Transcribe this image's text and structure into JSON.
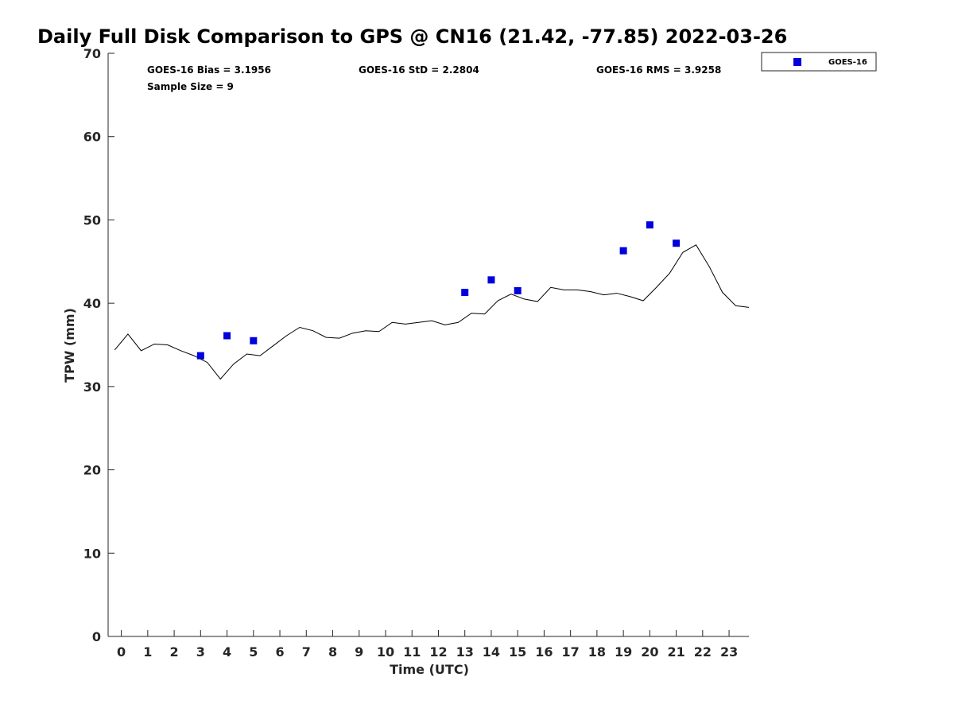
{
  "chart_data": {
    "type": "scatter",
    "title": "Daily Full Disk Comparison to GPS @ CN16 (21.42, -77.85) 2022-03-26",
    "xlabel": "Time (UTC)",
    "ylabel": "TPW (mm)",
    "xlim": [
      -0.5,
      23.75
    ],
    "ylim": [
      0,
      70
    ],
    "x_ticks": [
      0,
      1,
      2,
      3,
      4,
      5,
      6,
      7,
      8,
      9,
      10,
      11,
      12,
      13,
      14,
      15,
      16,
      17,
      18,
      19,
      20,
      21,
      22,
      23
    ],
    "y_ticks": [
      0,
      10,
      20,
      30,
      40,
      50,
      60,
      70
    ],
    "grid": false,
    "legend_position": "outside top-right",
    "stats": {
      "bias": "GOES-16 Bias = 3.1956",
      "std": "GOES-16 StD = 2.2804",
      "rms": "GOES-16 RMS = 3.9258",
      "sample": "Sample Size = 9"
    },
    "series": [
      {
        "name": "GOES-16",
        "kind": "scatter",
        "marker": "square",
        "color": "#0000dd",
        "x": [
          3,
          4,
          5,
          13,
          14,
          15,
          19,
          20,
          21
        ],
        "y": [
          33.7,
          36.1,
          35.5,
          41.3,
          42.8,
          41.5,
          46.3,
          49.4,
          47.2
        ]
      },
      {
        "kind": "line",
        "color": "#000000",
        "x": [
          -0.25,
          0.25,
          0.75,
          1.25,
          1.75,
          2.25,
          2.75,
          3.25,
          3.75,
          4.25,
          4.75,
          5.25,
          5.75,
          6.25,
          6.75,
          7.25,
          7.75,
          8.25,
          8.75,
          9.25,
          9.75,
          10.25,
          10.75,
          11.25,
          11.75,
          12.25,
          12.75,
          13.25,
          13.75,
          14.25,
          14.75,
          15.25,
          15.75,
          16.25,
          16.75,
          17.25,
          17.75,
          18.25,
          18.75,
          19.25,
          19.75,
          20.25,
          20.75,
          21.25,
          21.75,
          22.25,
          22.75,
          23.25,
          23.75
        ],
        "y": [
          34.4,
          36.3,
          34.3,
          35.1,
          35.0,
          34.3,
          33.7,
          32.9,
          30.9,
          32.7,
          33.9,
          33.7,
          34.9,
          36.1,
          37.1,
          36.7,
          35.9,
          35.8,
          36.4,
          36.7,
          36.6,
          37.7,
          37.5,
          37.7,
          37.9,
          37.4,
          37.7,
          38.8,
          38.7,
          40.3,
          41.1,
          40.5,
          40.2,
          41.9,
          41.6,
          41.6,
          41.4,
          41.0,
          41.2,
          40.8,
          40.3,
          41.9,
          43.6,
          46.1,
          47.0,
          44.4,
          41.3,
          39.7,
          39.5
        ]
      }
    ]
  }
}
